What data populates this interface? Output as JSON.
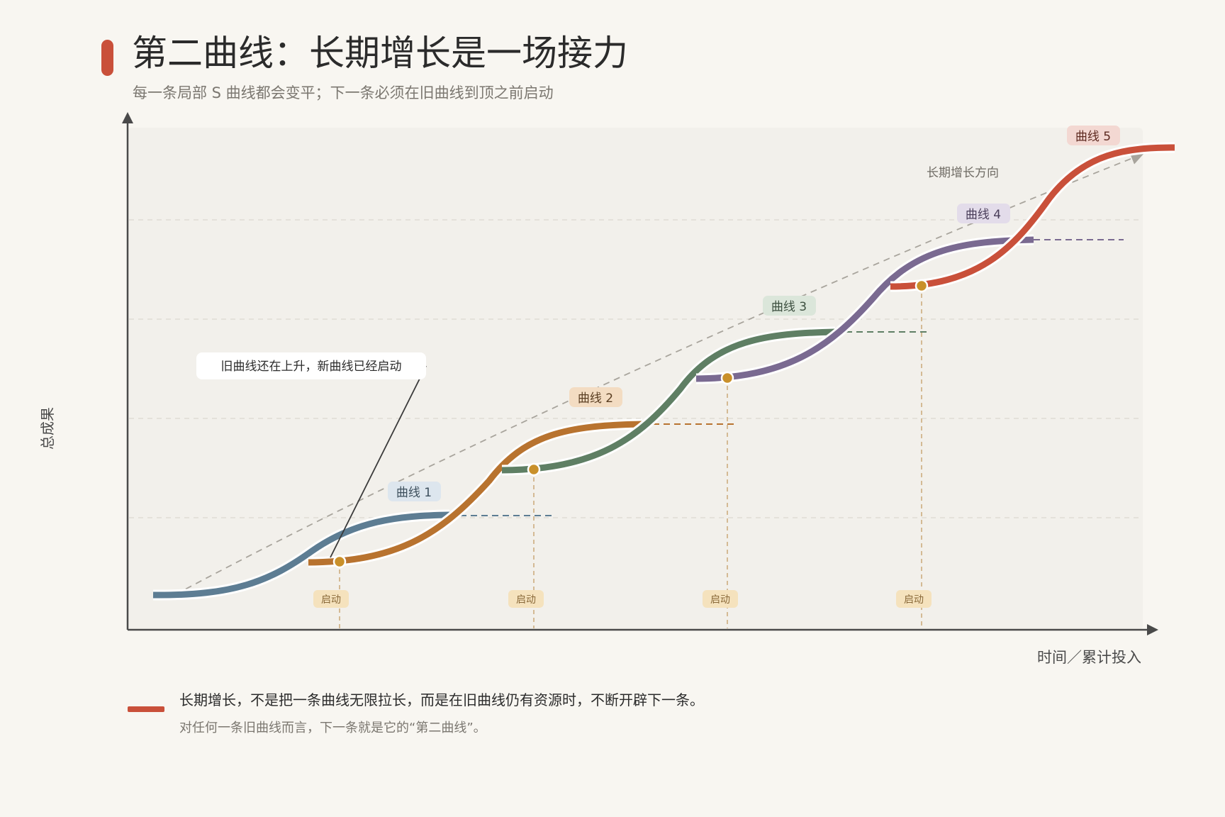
{
  "header": {
    "title": "第二曲线：长期增长是一场接力",
    "subtitle": "每一条局部 S 曲线都会变平；下一条必须在旧曲线到顶之前启动"
  },
  "axes": {
    "y_label": "总成果",
    "x_label": "时间／累计投入"
  },
  "annotations": {
    "trend": "长期增长方向",
    "callout": "旧曲线还在上升，新曲线已经启动",
    "start_label": "启动"
  },
  "curves": [
    {
      "name": "曲线 1",
      "color": "#5d7d93",
      "badge_bg": "#dde6ee"
    },
    {
      "name": "曲线 2",
      "color": "#b8732f",
      "badge_bg": "#f3dcc2"
    },
    {
      "name": "曲线 3",
      "color": "#5f7f64",
      "badge_bg": "#dbe6da"
    },
    {
      "name": "曲线 4",
      "color": "#7a6a91",
      "badge_bg": "#e3dcea"
    },
    {
      "name": "曲线 5",
      "color": "#c9503a",
      "badge_bg": "#f3d8d2"
    }
  ],
  "footer": {
    "line1": "长期增长，不是把一条曲线无限拉长，而是在旧曲线仍有资源时，不断开辟下一条。",
    "line2": "对任何一条旧曲线而言，下一条就是它的“第二曲线”。"
  },
  "colors": {
    "accent": "#c9503a",
    "start_dot": "#c9902a",
    "start_badge_bg": "#f5e2bd"
  }
}
